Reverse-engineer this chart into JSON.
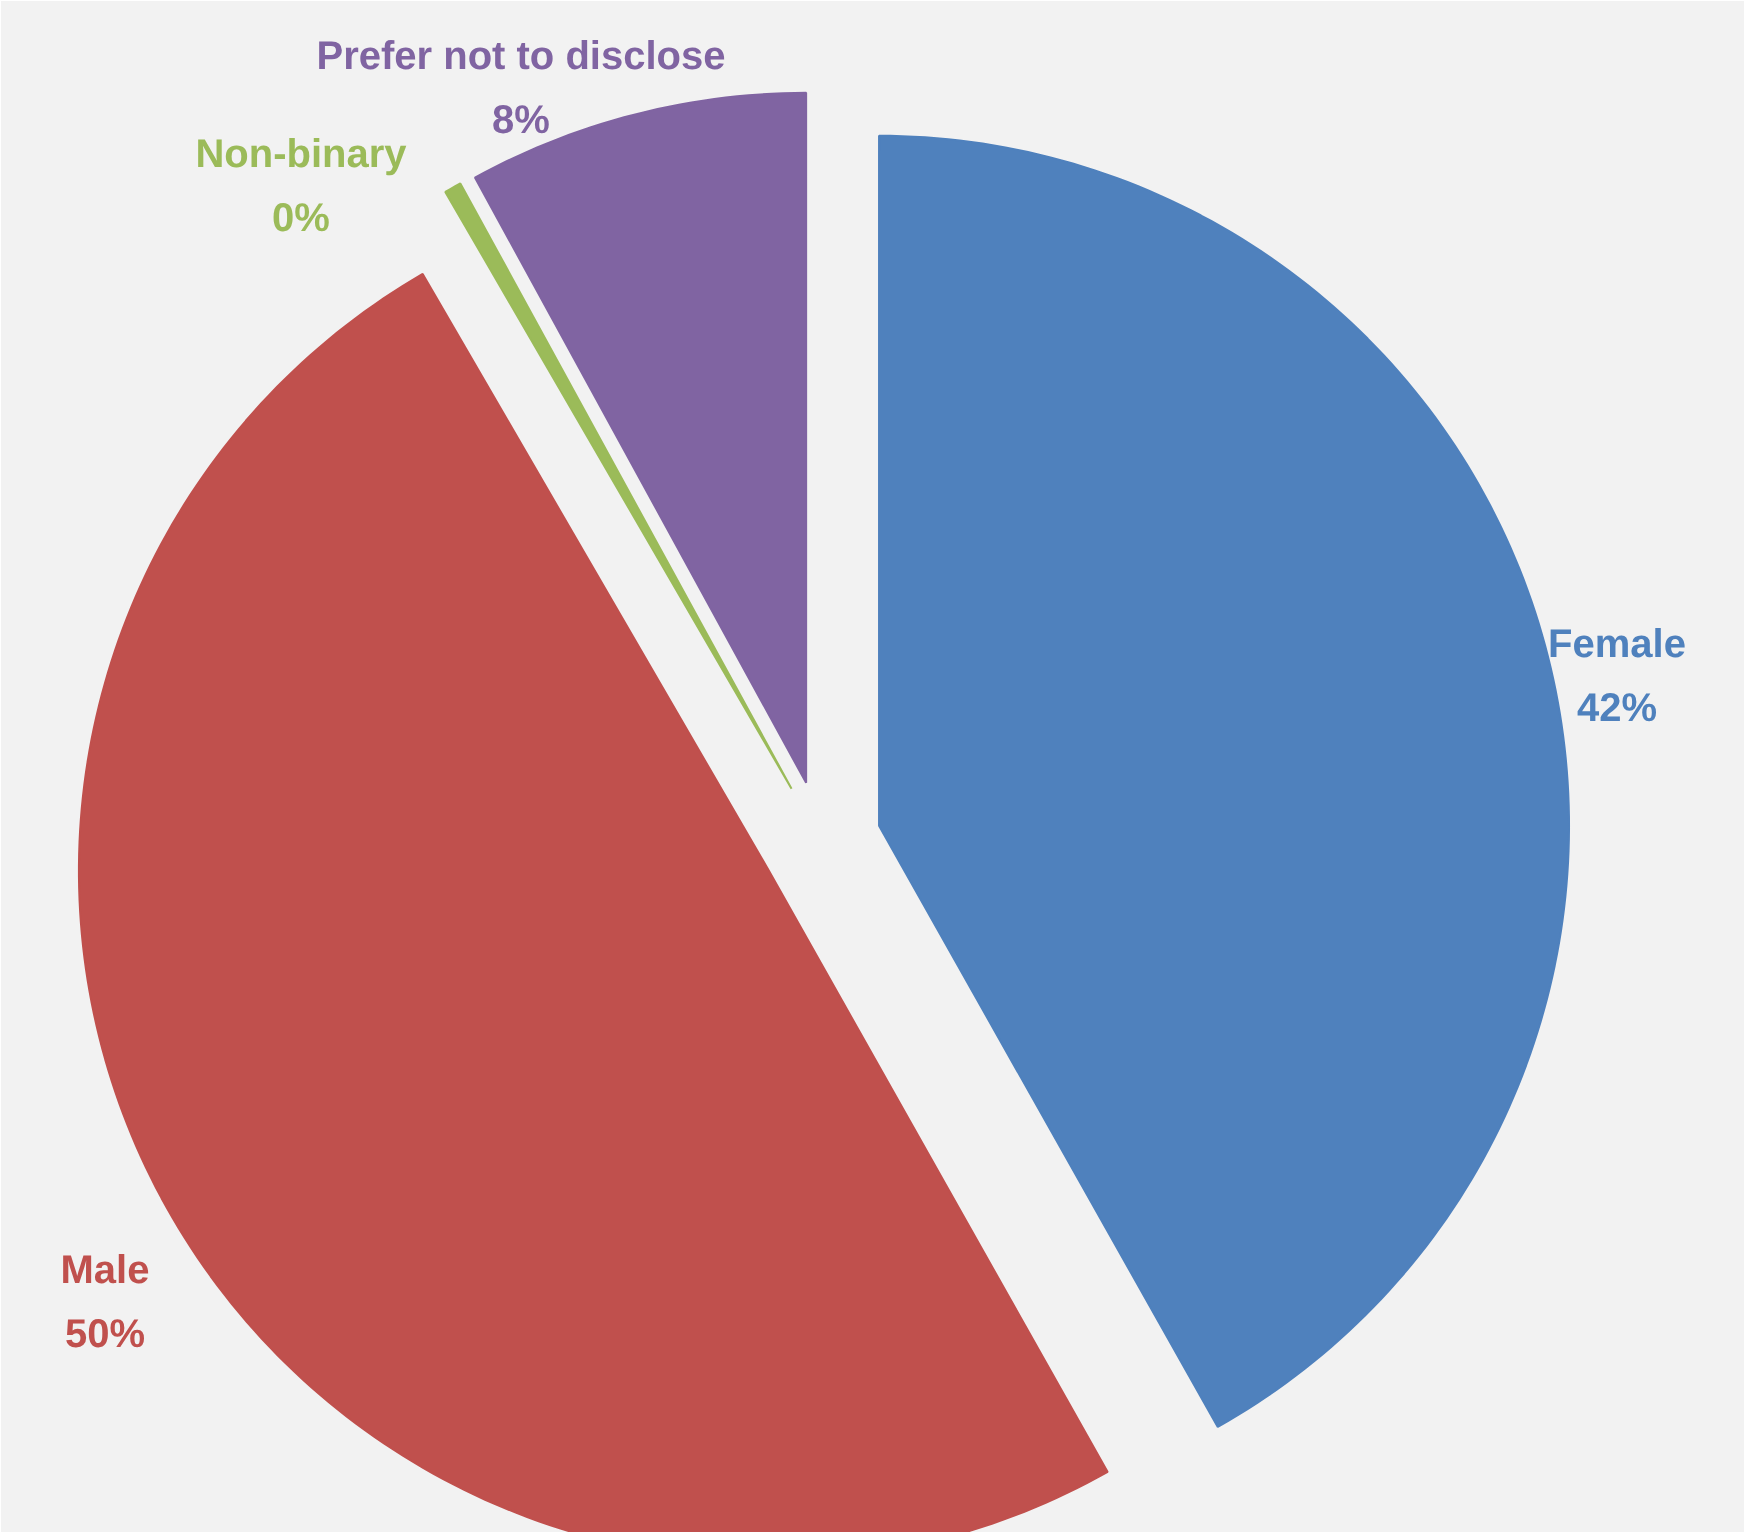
{
  "chart_data": {
    "type": "pie",
    "categories": [
      "Female",
      "Male",
      "Non-binary",
      "Prefer not to disclose"
    ],
    "values": [
      42,
      50,
      0.4,
      8
    ],
    "value_labels": [
      "42%",
      "50%",
      "0%",
      "8%"
    ],
    "colors": [
      "#4f81bd",
      "#c0504d",
      "#9bbb59",
      "#8064a2"
    ]
  }
}
